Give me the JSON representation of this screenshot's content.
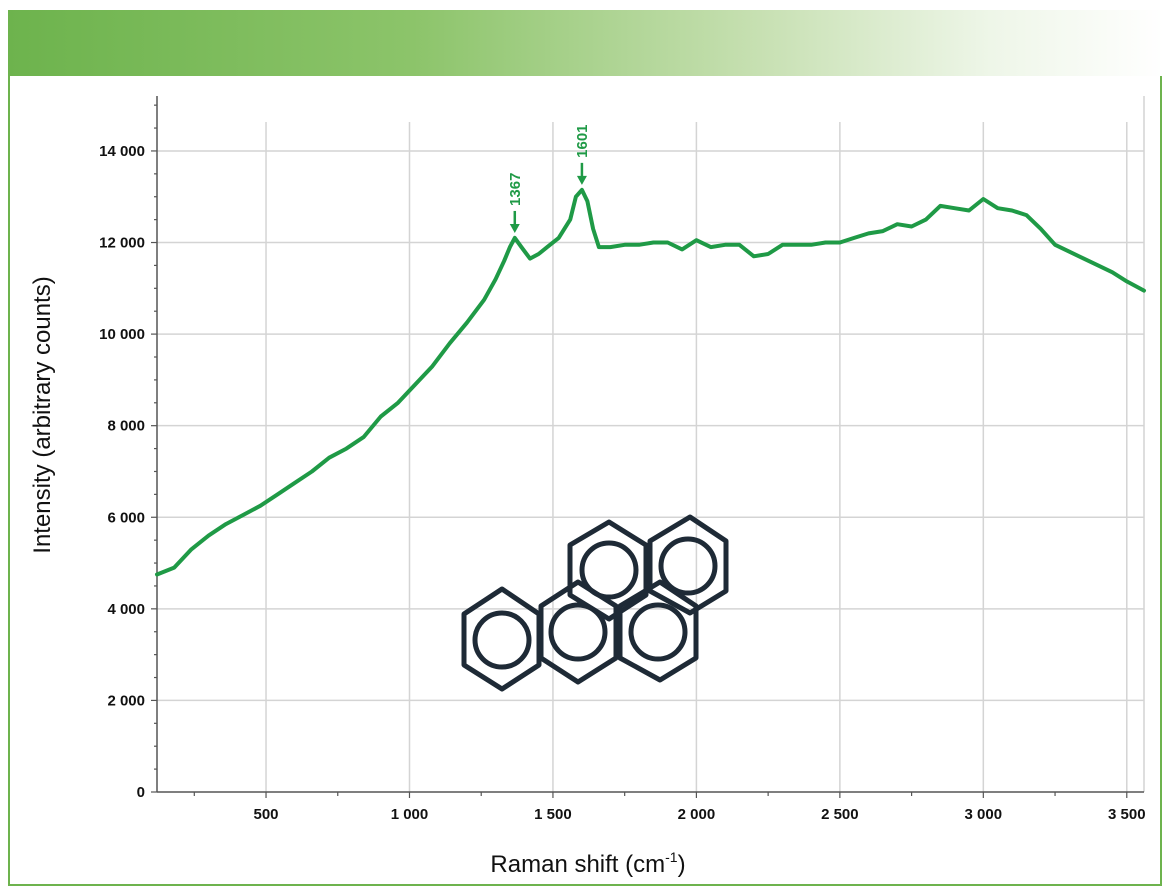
{
  "colors": {
    "header_gradient_start": "#6db34d",
    "frame": "#6db34d",
    "series": "#1f9a46",
    "grid": "#d4d4d4",
    "molecule": "#1e2a36"
  },
  "chart_data": {
    "type": "line",
    "title": "",
    "xlabel": "Raman shift (cm",
    "xlabel_sup": "-1",
    "xlabel_close": ")",
    "ylabel": "Intensity (arbitrary counts)",
    "xlim": [
      120,
      3560
    ],
    "ylim": [
      0,
      15200
    ],
    "grid": true,
    "x_ticks": [
      500,
      1000,
      1500,
      2000,
      2500,
      3000,
      3500
    ],
    "x_tick_labels": [
      "500",
      "1 000",
      "1 500",
      "2 000",
      "2 500",
      "3 000",
      "3 500"
    ],
    "y_ticks": [
      0,
      2000,
      4000,
      6000,
      8000,
      10000,
      12000,
      14000
    ],
    "y_tick_labels": [
      "0",
      "2 000",
      "4 000",
      "6 000",
      "8 000",
      "10 000",
      "12 000",
      "14 000"
    ],
    "series": [
      {
        "x": [
          120,
          180,
          240,
          300,
          360,
          420,
          480,
          540,
          600,
          660,
          720,
          780,
          840,
          900,
          960,
          1020,
          1080,
          1140,
          1200,
          1260,
          1300,
          1330,
          1350,
          1367,
          1390,
          1420,
          1450,
          1480,
          1520,
          1560,
          1580,
          1601,
          1620,
          1640,
          1660,
          1700,
          1750,
          1800,
          1850,
          1900,
          1950,
          2000,
          2050,
          2100,
          2150,
          2200,
          2250,
          2300,
          2350,
          2400,
          2450,
          2500,
          2550,
          2600,
          2650,
          2700,
          2750,
          2800,
          2850,
          2900,
          2950,
          3000,
          3050,
          3100,
          3150,
          3200,
          3250,
          3300,
          3350,
          3400,
          3450,
          3500,
          3560
        ],
        "y": [
          4750,
          4900,
          5300,
          5600,
          5850,
          6050,
          6250,
          6500,
          6750,
          7000,
          7300,
          7500,
          7750,
          8200,
          8500,
          8900,
          9300,
          9800,
          10250,
          10750,
          11200,
          11600,
          11900,
          12100,
          11900,
          11650,
          11750,
          11900,
          12100,
          12500,
          13000,
          13150,
          12900,
          12300,
          11900,
          11900,
          11950,
          11950,
          12000,
          12000,
          11850,
          12050,
          11900,
          11950,
          11950,
          11700,
          11750,
          11950,
          11950,
          11950,
          12000,
          12000,
          12100,
          12200,
          12250,
          12400,
          12350,
          12500,
          12800,
          12750,
          12700,
          12950,
          12750,
          12700,
          12600,
          12300,
          11950,
          11800,
          11650,
          11500,
          11350,
          11150,
          10950
        ]
      }
    ],
    "annotations": [
      {
        "x": 1367,
        "y": 12100,
        "label": "1367"
      },
      {
        "x": 1601,
        "y": 13150,
        "label": "1601"
      }
    ]
  }
}
